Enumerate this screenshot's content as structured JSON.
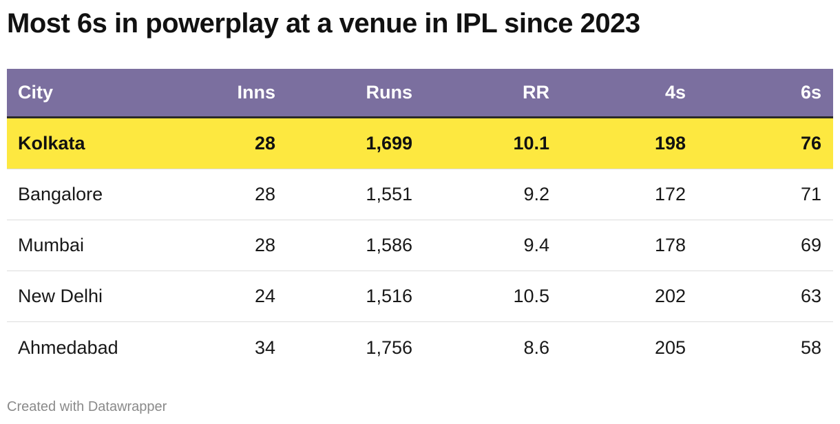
{
  "chart_data": {
    "type": "table",
    "title": "Most 6s in powerplay at a venue in IPL since 2023",
    "columns": [
      "City",
      "Inns",
      "Runs",
      "RR",
      "4s",
      "6s"
    ],
    "rows": [
      {
        "city": "Kolkata",
        "inns": "28",
        "runs": "1,699",
        "rr": "10.1",
        "fours": "198",
        "sixes": "76",
        "highlighted": true
      },
      {
        "city": "Bangalore",
        "inns": "28",
        "runs": "1,551",
        "rr": "9.2",
        "fours": "172",
        "sixes": "71",
        "highlighted": false
      },
      {
        "city": "Mumbai",
        "inns": "28",
        "runs": "1,586",
        "rr": "9.4",
        "fours": "178",
        "sixes": "69",
        "highlighted": false
      },
      {
        "city": "New Delhi",
        "inns": "24",
        "runs": "1,516",
        "rr": "10.5",
        "fours": "202",
        "sixes": "63",
        "highlighted": false
      },
      {
        "city": "Ahmedabad",
        "inns": "34",
        "runs": "1,756",
        "rr": "8.6",
        "fours": "205",
        "sixes": "58",
        "highlighted": false
      }
    ],
    "header_color": "#7b6f9f",
    "highlight_color": "#fde840"
  },
  "footer": {
    "credit": "Created with Datawrapper"
  }
}
